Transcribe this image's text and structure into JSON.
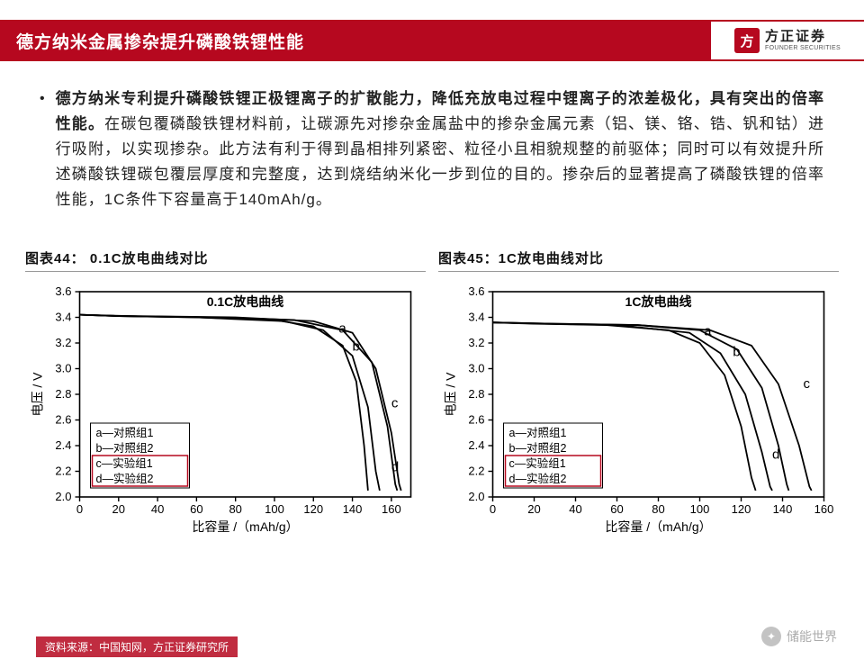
{
  "header": {
    "title": "德方纳米金属掺杂提升磷酸铁锂性能",
    "logo_square": "方",
    "logo_cn": "方正证券",
    "logo_en": "FOUNDER SECURITIES"
  },
  "paragraph": {
    "bold": "德方纳米专利提升磷酸铁锂正极锂离子的扩散能力，降低充放电过程中锂离子的浓差极化，具有突出的倍率性能。",
    "rest": "在碳包覆磷酸铁锂材料前，让碳源先对掺杂金属盐中的掺杂金属元素（铝、镁、铬、锆、钒和钴）进行吸附，以实现掺杂。此方法有利于得到晶相排列紧密、粒径小且相貌规整的前驱体；同时可以有效提升所述磷酸铁锂碳包覆层厚度和完整度，达到烧结纳米化一步到位的目的。掺杂后的显著提高了磷酸铁锂的倍率性能，1C条件下容量高于140mAh/g。"
  },
  "chart_left": {
    "caption": "图表44：  0.1C放电曲线对比",
    "inner_title": "0.1C放电曲线",
    "type": "line",
    "xlabel": "比容量 /（mAh/g）",
    "ylabel": "电压 / V",
    "xlim": [
      0,
      170
    ],
    "xtick_step": 20,
    "ylim": [
      2.0,
      3.6
    ],
    "ytick_step": 0.2,
    "line_color": "#000000",
    "axis_color": "#000000",
    "background": "#ffffff",
    "legend_box_color": "#b6081f",
    "legend_items": [
      "a—对照组1",
      "b—对照组2",
      "c—实验组1",
      "d—实验组2"
    ],
    "curve_labels": [
      "a",
      "b",
      "c",
      "d"
    ],
    "series": {
      "a": [
        [
          0,
          3.42
        ],
        [
          20,
          3.41
        ],
        [
          60,
          3.4
        ],
        [
          100,
          3.38
        ],
        [
          120,
          3.33
        ],
        [
          135,
          3.18
        ],
        [
          142,
          2.9
        ],
        [
          146,
          2.4
        ],
        [
          148,
          2.05
        ]
      ],
      "b": [
        [
          0,
          3.42
        ],
        [
          20,
          3.41
        ],
        [
          60,
          3.4
        ],
        [
          105,
          3.37
        ],
        [
          125,
          3.3
        ],
        [
          140,
          3.1
        ],
        [
          148,
          2.7
        ],
        [
          152,
          2.2
        ],
        [
          154,
          2.05
        ]
      ],
      "c": [
        [
          0,
          3.42
        ],
        [
          20,
          3.41
        ],
        [
          70,
          3.4
        ],
        [
          110,
          3.38
        ],
        [
          135,
          3.3
        ],
        [
          150,
          3.05
        ],
        [
          158,
          2.55
        ],
        [
          162,
          2.1
        ],
        [
          163,
          2.05
        ]
      ],
      "d": [
        [
          0,
          3.42
        ],
        [
          25,
          3.41
        ],
        [
          80,
          3.4
        ],
        [
          120,
          3.37
        ],
        [
          140,
          3.28
        ],
        [
          152,
          3.0
        ],
        [
          160,
          2.5
        ],
        [
          164,
          2.1
        ],
        [
          165,
          2.05
        ]
      ]
    }
  },
  "chart_right": {
    "caption": "图表45：1C放电曲线对比",
    "inner_title": "1C放电曲线",
    "type": "line",
    "xlabel": "比容量 /（mAh/g）",
    "ylabel": "电压 / V",
    "xlim": [
      0,
      160
    ],
    "xtick_step": 20,
    "ylim": [
      2.0,
      3.6
    ],
    "ytick_step": 0.2,
    "line_color": "#000000",
    "axis_color": "#000000",
    "background": "#ffffff",
    "legend_box_color": "#b6081f",
    "legend_items": [
      "a—对照组1",
      "b—对照组2",
      "c—实验组1",
      "d—实验组2"
    ],
    "curve_labels": [
      "a",
      "b",
      "c",
      "d"
    ],
    "series": {
      "a": [
        [
          0,
          3.36
        ],
        [
          20,
          3.35
        ],
        [
          55,
          3.34
        ],
        [
          85,
          3.3
        ],
        [
          100,
          3.2
        ],
        [
          112,
          2.95
        ],
        [
          120,
          2.55
        ],
        [
          125,
          2.15
        ],
        [
          127,
          2.05
        ]
      ],
      "b": [
        [
          0,
          3.36
        ],
        [
          25,
          3.35
        ],
        [
          60,
          3.34
        ],
        [
          95,
          3.28
        ],
        [
          110,
          3.12
        ],
        [
          122,
          2.8
        ],
        [
          130,
          2.35
        ],
        [
          134,
          2.08
        ],
        [
          135,
          2.05
        ]
      ],
      "c": [
        [
          0,
          3.36
        ],
        [
          30,
          3.35
        ],
        [
          70,
          3.34
        ],
        [
          105,
          3.3
        ],
        [
          125,
          3.18
        ],
        [
          138,
          2.88
        ],
        [
          148,
          2.4
        ],
        [
          153,
          2.08
        ],
        [
          154,
          2.05
        ]
      ],
      "d": [
        [
          0,
          3.36
        ],
        [
          30,
          3.35
        ],
        [
          70,
          3.34
        ],
        [
          100,
          3.3
        ],
        [
          118,
          3.15
        ],
        [
          130,
          2.85
        ],
        [
          138,
          2.4
        ],
        [
          142,
          2.1
        ],
        [
          143,
          2.05
        ]
      ]
    }
  },
  "footer": {
    "source": "资料来源：中国知网，方正证券研究所",
    "wechat": "储能世界"
  }
}
